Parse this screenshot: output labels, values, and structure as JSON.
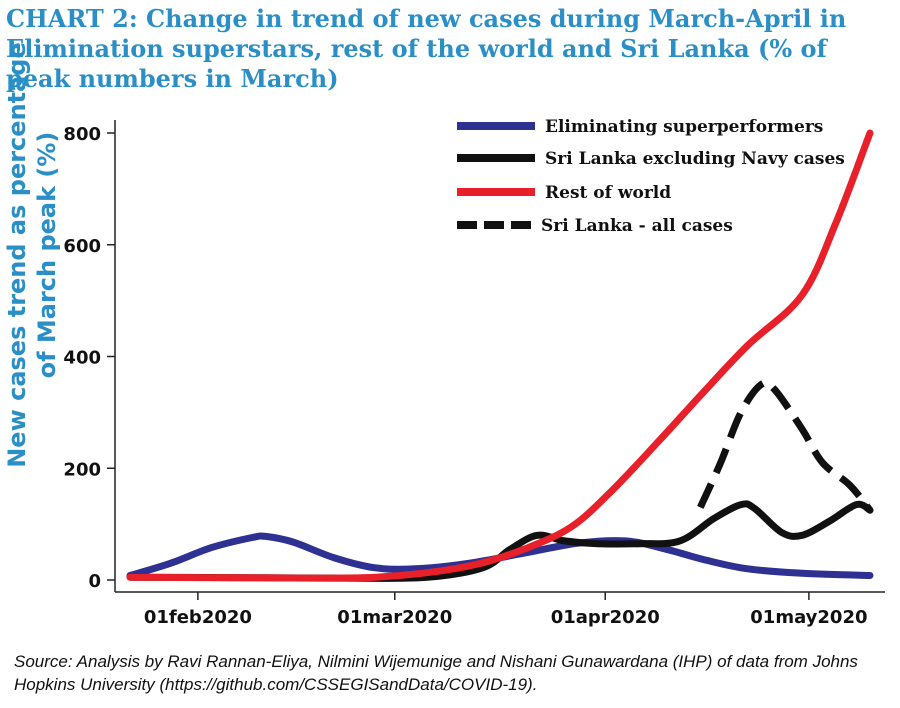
{
  "chart_data": {
    "type": "line",
    "title": "CHART 2:  Change in trend of new cases during March-April in Elimination superstars, rest of the world and Sri Lanka (% of peak numbers in March)",
    "ylabel_line1": "New cases trend as percentage",
    "ylabel_line2": "of March peak (%)",
    "xlabel": "",
    "x_ticks": [
      "01feb2020",
      "01mar2020",
      "01apr2020",
      "01may2020"
    ],
    "x_tick_dates": [
      "2020-02-01",
      "2020-03-01",
      "2020-04-01",
      "2020-05-01"
    ],
    "xlim": [
      "2020-01-22",
      "2020-05-10"
    ],
    "y_ticks": [
      "800",
      "600",
      "400",
      "200",
      "0"
    ],
    "ylim": [
      0,
      800
    ],
    "legend_position": "top-right",
    "grid": false,
    "series": [
      {
        "name": "Eliminating superperformers",
        "color": "#2e3192",
        "style": "solid",
        "points": [
          [
            "2020-01-22",
            8
          ],
          [
            "2020-01-28",
            30
          ],
          [
            "2020-02-03",
            58
          ],
          [
            "2020-02-09",
            76
          ],
          [
            "2020-02-11",
            78
          ],
          [
            "2020-02-15",
            68
          ],
          [
            "2020-02-21",
            40
          ],
          [
            "2020-02-27",
            22
          ],
          [
            "2020-03-04",
            20
          ],
          [
            "2020-03-12",
            30
          ],
          [
            "2020-03-20",
            48
          ],
          [
            "2020-03-28",
            66
          ],
          [
            "2020-04-04",
            70
          ],
          [
            "2020-04-10",
            55
          ],
          [
            "2020-04-16",
            35
          ],
          [
            "2020-04-22",
            20
          ],
          [
            "2020-04-30",
            12
          ],
          [
            "2020-05-10",
            8
          ]
        ]
      },
      {
        "name": "Sri Lanka excluding Navy cases",
        "color": "#111111",
        "style": "solid",
        "points": [
          [
            "2020-01-22",
            5
          ],
          [
            "2020-02-10",
            4
          ],
          [
            "2020-02-25",
            3
          ],
          [
            "2020-03-06",
            5
          ],
          [
            "2020-03-14",
            22
          ],
          [
            "2020-03-18",
            55
          ],
          [
            "2020-03-22",
            80
          ],
          [
            "2020-03-26",
            70
          ],
          [
            "2020-03-31",
            65
          ],
          [
            "2020-04-06",
            65
          ],
          [
            "2020-04-12",
            70
          ],
          [
            "2020-04-17",
            110
          ],
          [
            "2020-04-21",
            135
          ],
          [
            "2020-04-23",
            128
          ],
          [
            "2020-04-27",
            85
          ],
          [
            "2020-04-30",
            80
          ],
          [
            "2020-05-04",
            105
          ],
          [
            "2020-05-08",
            135
          ],
          [
            "2020-05-10",
            125
          ]
        ]
      },
      {
        "name": "Rest of world",
        "color": "#e8202a",
        "style": "solid",
        "points": [
          [
            "2020-01-22",
            5
          ],
          [
            "2020-02-10",
            4
          ],
          [
            "2020-02-25",
            4
          ],
          [
            "2020-03-05",
            12
          ],
          [
            "2020-03-13",
            28
          ],
          [
            "2020-03-20",
            55
          ],
          [
            "2020-03-27",
            95
          ],
          [
            "2020-04-02",
            160
          ],
          [
            "2020-04-09",
            250
          ],
          [
            "2020-04-15",
            330
          ],
          [
            "2020-04-22",
            420
          ],
          [
            "2020-04-30",
            510
          ],
          [
            "2020-05-05",
            640
          ],
          [
            "2020-05-10",
            800
          ]
        ]
      },
      {
        "name": "Sri Lanka - all cases",
        "color": "#111111",
        "style": "dashed",
        "points": [
          [
            "2020-04-15",
            130
          ],
          [
            "2020-04-18",
            210
          ],
          [
            "2020-04-21",
            300
          ],
          [
            "2020-04-24",
            350
          ],
          [
            "2020-04-26",
            340
          ],
          [
            "2020-04-30",
            270
          ],
          [
            "2020-05-03",
            210
          ],
          [
            "2020-05-07",
            170
          ],
          [
            "2020-05-10",
            125
          ]
        ]
      }
    ]
  },
  "source_text": "Source: Analysis by Ravi Rannan-Eliya, Nilmini Wijemunige and Nishani Gunawardana (IHP) of data from Johns Hopkins University (https://github.com/CSSEGISandData/COVID-19)."
}
